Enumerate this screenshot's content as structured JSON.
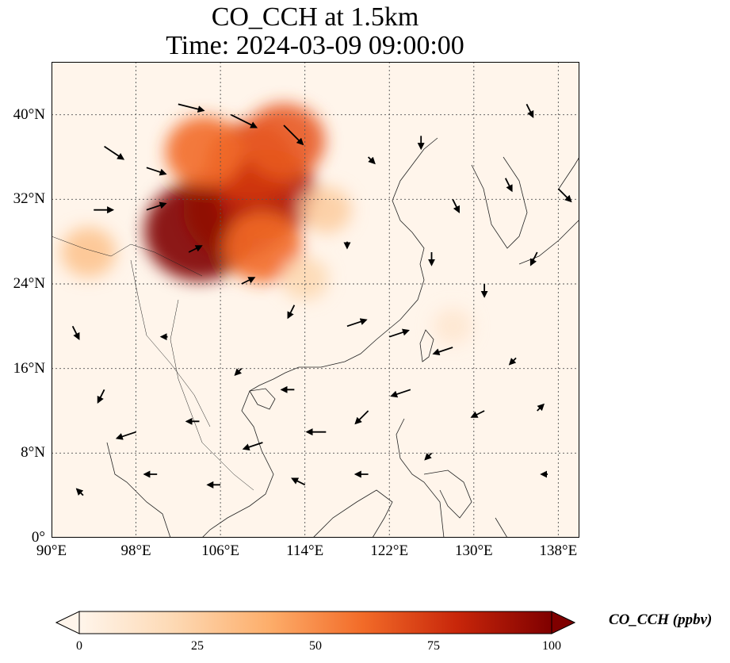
{
  "title": {
    "line1": "CO_CCH at 1.5km",
    "line2": "Time: 2024-03-09 09:00:00"
  },
  "map": {
    "lon_range": [
      90,
      140
    ],
    "lat_range": [
      0,
      45
    ],
    "lat_ticks": [
      {
        "value": 0,
        "label": "0°"
      },
      {
        "value": 8,
        "label": "8°N"
      },
      {
        "value": 16,
        "label": "16°N"
      },
      {
        "value": 24,
        "label": "24°N"
      },
      {
        "value": 32,
        "label": "32°N"
      },
      {
        "value": 40,
        "label": "40°N"
      }
    ],
    "lon_ticks": [
      {
        "value": 90,
        "label": "90°E"
      },
      {
        "value": 98,
        "label": "98°E"
      },
      {
        "value": 106,
        "label": "106°E"
      },
      {
        "value": 114,
        "label": "114°E"
      },
      {
        "value": 122,
        "label": "122°E"
      },
      {
        "value": 130,
        "label": "130°E"
      },
      {
        "value": 138,
        "label": "138°E"
      }
    ],
    "gridlines": true,
    "colormap": [
      "#fff5eb",
      "#fdd9b4",
      "#fdae6b",
      "#f26b28",
      "#c8260a",
      "#7f0000"
    ],
    "concentration_peaks": [
      {
        "lon": 104.0,
        "lat": 29.0,
        "value": 100
      },
      {
        "lon": 107.5,
        "lat": 31.0,
        "value": 95
      },
      {
        "lon": 110.5,
        "lat": 32.5,
        "value": 85
      },
      {
        "lon": 109.0,
        "lat": 35.5,
        "value": 75
      },
      {
        "lon": 112.0,
        "lat": 37.5,
        "value": 65
      },
      {
        "lon": 104.5,
        "lat": 36.5,
        "value": 60
      },
      {
        "lon": 110.0,
        "lat": 27.5,
        "value": 60
      },
      {
        "lon": 116.0,
        "lat": 31.0,
        "value": 25
      },
      {
        "lon": 114.0,
        "lat": 24.5,
        "value": 20
      },
      {
        "lon": 93.5,
        "lat": 27.0,
        "value": 30
      },
      {
        "lon": 128.0,
        "lat": 20.0,
        "value": 10
      }
    ],
    "wind_vectors": [
      {
        "lon": 102,
        "lat": 41,
        "u": 4,
        "v": -1
      },
      {
        "lon": 107,
        "lat": 40,
        "u": 4,
        "v": -2
      },
      {
        "lon": 112,
        "lat": 39,
        "u": 3,
        "v": -3
      },
      {
        "lon": 95,
        "lat": 37,
        "u": 3,
        "v": -2
      },
      {
        "lon": 99,
        "lat": 35,
        "u": 3,
        "v": -1
      },
      {
        "lon": 94,
        "lat": 31,
        "u": 3,
        "v": 0
      },
      {
        "lon": 99,
        "lat": 31,
        "u": 3,
        "v": 1
      },
      {
        "lon": 103,
        "lat": 27,
        "u": 2,
        "v": 1
      },
      {
        "lon": 108,
        "lat": 24,
        "u": 2,
        "v": 1
      },
      {
        "lon": 113,
        "lat": 22,
        "u": -1,
        "v": -2
      },
      {
        "lon": 118,
        "lat": 20,
        "u": 3,
        "v": 1
      },
      {
        "lon": 122,
        "lat": 19,
        "u": 3,
        "v": 1
      },
      {
        "lon": 128,
        "lat": 18,
        "u": -3,
        "v": -1
      },
      {
        "lon": 124,
        "lat": 14,
        "u": -3,
        "v": -1
      },
      {
        "lon": 120,
        "lat": 12,
        "u": -2,
        "v": -2
      },
      {
        "lon": 116,
        "lat": 10,
        "u": -3,
        "v": 0
      },
      {
        "lon": 110,
        "lat": 9,
        "u": -3,
        "v": -1
      },
      {
        "lon": 104,
        "lat": 11,
        "u": -2,
        "v": 0
      },
      {
        "lon": 98,
        "lat": 10,
        "u": -3,
        "v": -1
      },
      {
        "lon": 95,
        "lat": 14,
        "u": -1,
        "v": -2
      },
      {
        "lon": 100,
        "lat": 6,
        "u": -2,
        "v": 0
      },
      {
        "lon": 106,
        "lat": 5,
        "u": -2,
        "v": 0
      },
      {
        "lon": 114,
        "lat": 5,
        "u": -2,
        "v": 1
      },
      {
        "lon": 120,
        "lat": 6,
        "u": -2,
        "v": 0
      },
      {
        "lon": 126,
        "lat": 8,
        "u": -1,
        "v": -1
      },
      {
        "lon": 131,
        "lat": 12,
        "u": -2,
        "v": -1
      },
      {
        "lon": 134,
        "lat": 17,
        "u": -1,
        "v": -1
      },
      {
        "lon": 131,
        "lat": 24,
        "u": 0,
        "v": -2
      },
      {
        "lon": 126,
        "lat": 27,
        "u": 0,
        "v": -2
      },
      {
        "lon": 128,
        "lat": 32,
        "u": 1,
        "v": -2
      },
      {
        "lon": 133,
        "lat": 34,
        "u": 1,
        "v": -2
      },
      {
        "lon": 135,
        "lat": 41,
        "u": 1,
        "v": -2
      },
      {
        "lon": 138,
        "lat": 33,
        "u": 2,
        "v": -2
      },
      {
        "lon": 125,
        "lat": 38,
        "u": 0,
        "v": -2
      },
      {
        "lon": 120,
        "lat": 36,
        "u": 1,
        "v": -1
      },
      {
        "lon": 118,
        "lat": 28,
        "u": 0,
        "v": -1
      },
      {
        "lon": 136,
        "lat": 27,
        "u": -1,
        "v": -2
      },
      {
        "lon": 136,
        "lat": 12,
        "u": 1,
        "v": 1
      },
      {
        "lon": 137,
        "lat": 6,
        "u": -1,
        "v": 0
      },
      {
        "lon": 92,
        "lat": 20,
        "u": 1,
        "v": -2
      },
      {
        "lon": 93,
        "lat": 4,
        "u": -1,
        "v": 1
      },
      {
        "lon": 108,
        "lat": 16,
        "u": -1,
        "v": -1
      },
      {
        "lon": 113,
        "lat": 14,
        "u": -2,
        "v": 0
      },
      {
        "lon": 101,
        "lat": 19,
        "u": -1,
        "v": 0
      }
    ]
  },
  "colorbar": {
    "label": "CO_CCH (ppbv)",
    "min": 0,
    "max": 100,
    "extend": "both",
    "ticks": [
      {
        "value": 0,
        "label": "0"
      },
      {
        "value": 25,
        "label": "25"
      },
      {
        "value": 50,
        "label": "50"
      },
      {
        "value": 75,
        "label": "75"
      },
      {
        "value": 100,
        "label": "100"
      }
    ]
  }
}
